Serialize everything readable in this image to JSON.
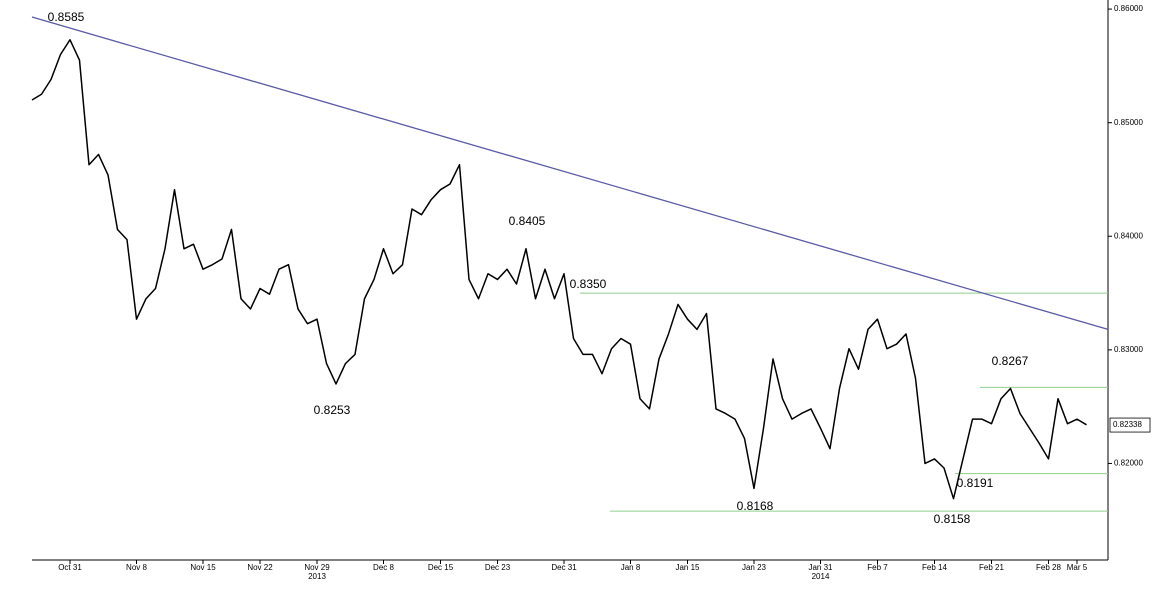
{
  "chart_data": {
    "type": "line",
    "categories": [
      null,
      null,
      null,
      null,
      "Oct 31",
      null,
      null,
      null,
      null,
      null,
      null,
      "Nov 8",
      null,
      null,
      null,
      null,
      null,
      null,
      "Nov 15",
      null,
      null,
      null,
      null,
      null,
      "Nov 22",
      null,
      null,
      null,
      null,
      null,
      "Nov 29",
      null,
      null,
      null,
      null,
      null,
      null,
      "Dec 8",
      null,
      null,
      null,
      null,
      null,
      "Dec 15",
      null,
      null,
      null,
      null,
      null,
      "Dec 23",
      null,
      null,
      null,
      null,
      null,
      null,
      "Dec 31",
      null,
      null,
      null,
      null,
      null,
      null,
      "Jan 8",
      null,
      null,
      null,
      null,
      null,
      "Jan 15",
      null,
      null,
      null,
      null,
      null,
      null,
      "Jan 23",
      null,
      null,
      null,
      null,
      null,
      null,
      "Jan 31",
      null,
      null,
      null,
      null,
      null,
      "Feb 7",
      null,
      null,
      null,
      null,
      null,
      "Feb 14",
      null,
      null,
      null,
      null,
      null,
      "Feb 21",
      null,
      null,
      null,
      null,
      null,
      "Feb 28",
      null,
      null,
      "Mar 5",
      null
    ],
    "series": [
      {
        "color": "#000000",
        "values": [
          0.852,
          0.8525,
          0.8538,
          0.856,
          0.8573,
          0.8555,
          0.8463,
          0.8472,
          0.8454,
          0.8406,
          0.8397,
          0.8327,
          0.8345,
          0.8354,
          0.8389,
          0.8441,
          0.8389,
          0.8393,
          0.8371,
          0.8375,
          0.838,
          0.8406,
          0.8345,
          0.8336,
          0.8354,
          0.8349,
          0.8371,
          0.8375,
          0.8336,
          0.8323,
          0.8327,
          0.8288,
          0.827,
          0.8288,
          0.8296,
          0.8345,
          0.8362,
          0.8389,
          0.8367,
          0.8375,
          0.8424,
          0.8419,
          0.8432,
          0.8441,
          0.8446,
          0.8463,
          0.8362,
          0.8345,
          0.8367,
          0.8362,
          0.8371,
          0.8358,
          0.8389,
          0.8345,
          0.8371,
          0.8345,
          0.8367,
          0.831,
          0.8296,
          0.8296,
          0.8279,
          0.8301,
          0.831,
          0.8305,
          0.8257,
          0.8248,
          0.8292,
          0.8314,
          0.834,
          0.8327,
          0.8318,
          0.8332,
          0.8248,
          0.8244,
          0.8239,
          0.8222,
          0.8178,
          0.8231,
          0.8292,
          0.8257,
          0.8239,
          0.8244,
          0.8248,
          0.8231,
          0.8213,
          0.8266,
          0.8301,
          0.8283,
          0.8318,
          0.8327,
          0.8301,
          0.8305,
          0.8314,
          0.8275,
          0.82,
          0.8204,
          0.8196,
          0.8169,
          0.8204,
          0.8239,
          0.8239,
          0.8235,
          0.8257,
          0.8266,
          0.8244,
          0.8231,
          0.8218,
          0.8204,
          0.8257,
          0.8235,
          0.8239,
          0.8234
        ]
      }
    ],
    "year_labels": [
      {
        "label": "2013",
        "category": "Nov 29"
      },
      {
        "label": "2014",
        "category": "Jan 31"
      }
    ],
    "ylim": [
      0.8115,
      0.8608
    ],
    "yticks": [
      {
        "value": 0.82,
        "label": "0.82000"
      },
      {
        "value": 0.83,
        "label": "0.83000"
      },
      {
        "value": 0.84,
        "label": "0.84000"
      },
      {
        "value": 0.85,
        "label": "0.85000"
      },
      {
        "value": 0.86,
        "label": "0.86000"
      }
    ],
    "last_value": {
      "value": 0.82338,
      "label": "0.82338"
    },
    "trendline": {
      "color": "#5a5aa8",
      "values": [
        0.8593,
        0.8318
      ]
    },
    "level_color": "#8fcf8f",
    "annotations": [
      {
        "value": 0.8585,
        "label": "0.8585"
      },
      {
        "value": 0.8405,
        "label": "0.8405"
      },
      {
        "value": 0.835,
        "label": "0.8350"
      },
      {
        "value": 0.8253,
        "label": "0.8253"
      },
      {
        "value": 0.8168,
        "label": "0.8168"
      },
      {
        "value": 0.8158,
        "label": "0.8158"
      },
      {
        "value": 0.8267,
        "label": "0.8267"
      },
      {
        "value": 0.8191,
        "label": "0.8191"
      }
    ]
  }
}
